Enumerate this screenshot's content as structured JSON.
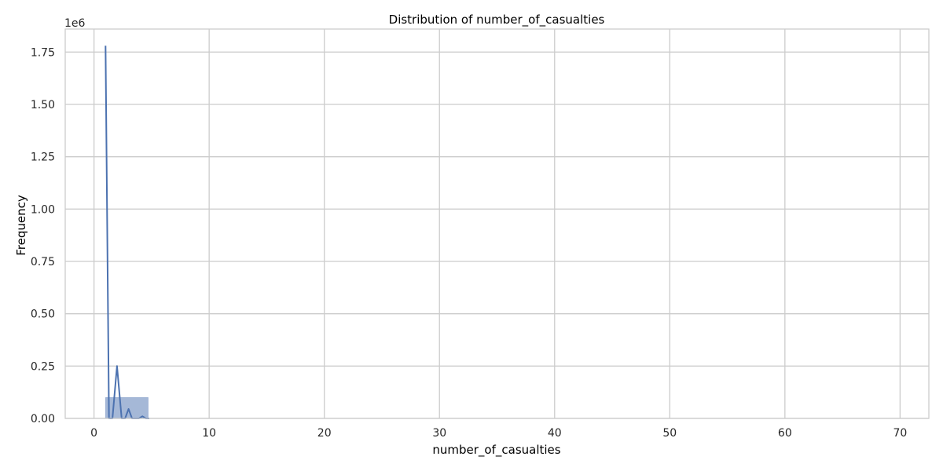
{
  "chart_data": {
    "type": "bar",
    "title": "Distribution of number_of_casualties",
    "xlabel": "number_of_casualties",
    "ylabel": "Frequency",
    "y_offset_label": "1e6",
    "xlim": [
      -2.5,
      72.5
    ],
    "ylim": [
      0,
      1.86
    ],
    "x_ticks": [
      0,
      10,
      20,
      30,
      40,
      50,
      60,
      70
    ],
    "x_tick_labels": [
      "0",
      "10",
      "20",
      "30",
      "40",
      "50",
      "60",
      "70"
    ],
    "y_ticks": [
      0,
      0.25,
      0.5,
      0.75,
      1.0,
      1.25,
      1.5,
      1.75
    ],
    "y_tick_labels": [
      "0.00",
      "0.25",
      "0.50",
      "0.75",
      "1.00",
      "1.25",
      "1.50",
      "1.75"
    ],
    "grid": true,
    "legend": "none",
    "bar_color": "#4c72b0",
    "line_color": "#4c72b0",
    "histogram_bins": [
      {
        "x_start": 1,
        "x_end": 4.7,
        "value": 0.1
      }
    ],
    "kde_line": {
      "x": [
        1.0,
        1.3,
        1.6,
        2.0,
        2.4,
        2.7,
        3.0,
        3.3,
        3.6,
        3.9,
        4.2,
        4.5,
        4.8
      ],
      "y": [
        1.78,
        0.0,
        0.0,
        0.25,
        0.0,
        0.0,
        0.045,
        0.0,
        0.0,
        0.0,
        0.01,
        0.0,
        0.0
      ]
    }
  }
}
